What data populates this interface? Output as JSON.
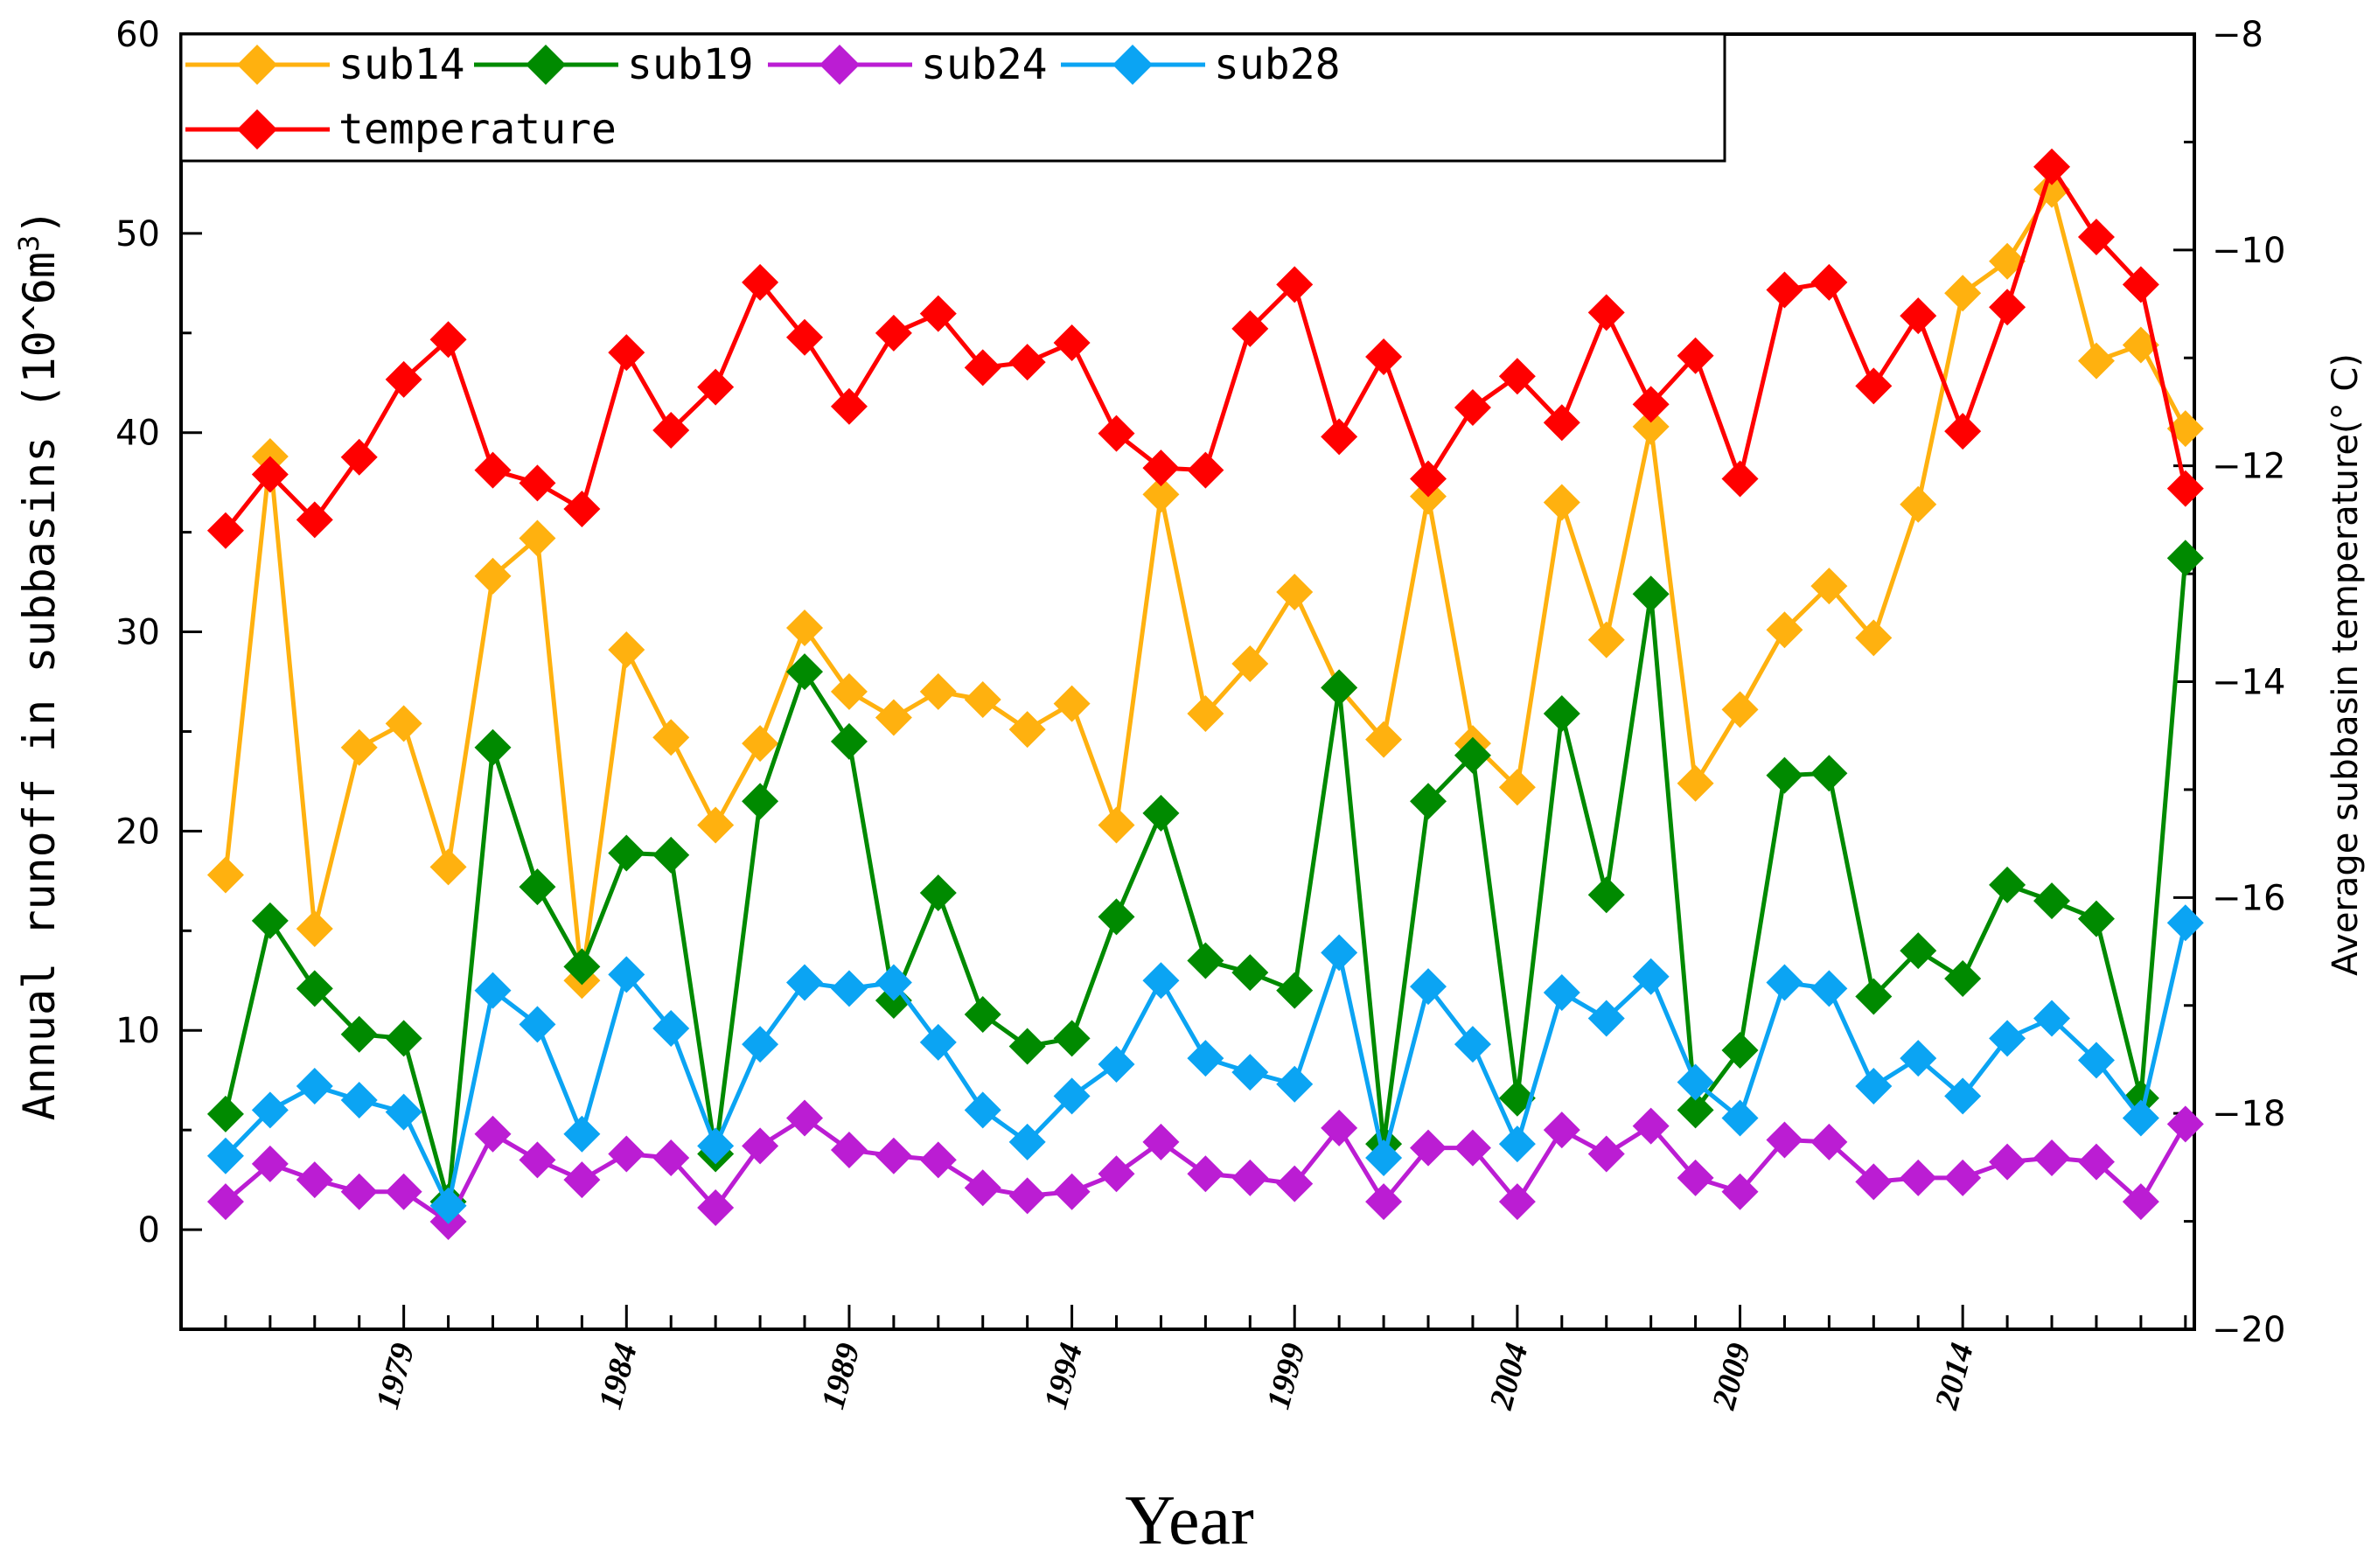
{
  "chart_data": {
    "type": "line",
    "title": "",
    "xlabel": "Year",
    "ylabel": "Annual runoff in subbasins (10^6m³)",
    "ylabel_parts": {
      "main": "Annual runoff in subbasins (10",
      "exp": "^6m",
      "sup": "3",
      "close": ")"
    },
    "y2label": "Average subbasin temperature(° C)",
    "xlim": [
      1974,
      2019.2
    ],
    "ylim": [
      -5,
      60
    ],
    "y2lim": [
      -20,
      -8
    ],
    "x_ticks": [
      1979,
      1984,
      1989,
      1994,
      1999,
      2004,
      2009,
      2014
    ],
    "x_tick_labels": [
      "1979",
      "1984",
      "1989",
      "1994",
      "1999",
      "2004",
      "2009",
      "2014"
    ],
    "y_ticks": [
      0,
      10,
      20,
      30,
      40,
      50,
      60
    ],
    "y_tick_labels": [
      "0",
      "10",
      "20",
      "30",
      "40",
      "50",
      "60"
    ],
    "y2_ticks": [
      -20,
      -18,
      -16,
      -14,
      -12,
      -10,
      -8
    ],
    "y2_tick_labels": [
      "−20",
      "−18",
      "−16",
      "−14",
      "−12",
      "−10",
      "−8"
    ],
    "legend_position": "top-left",
    "x": [
      1975,
      1976,
      1977,
      1978,
      1979,
      1980,
      1981,
      1982,
      1983,
      1984,
      1985,
      1986,
      1987,
      1988,
      1989,
      1990,
      1991,
      1992,
      1993,
      1994,
      1995,
      1996,
      1997,
      1998,
      1999,
      2000,
      2001,
      2002,
      2003,
      2004,
      2005,
      2006,
      2007,
      2008,
      2009,
      2010,
      2011,
      2012,
      2013,
      2014,
      2015,
      2016,
      2017,
      2018,
      2019
    ],
    "series": [
      {
        "name": "sub14",
        "axis": "left",
        "color": "#FFB10F",
        "values": [
          17.8,
          38.8,
          15.1,
          24.2,
          25.4,
          18.2,
          32.8,
          34.7,
          12.5,
          29.1,
          24.7,
          20.3,
          24.4,
          30.2,
          27.0,
          25.7,
          27.0,
          26.6,
          25.1,
          26.4,
          20.3,
          36.9,
          25.9,
          28.4,
          32.0,
          27.2,
          24.6,
          36.8,
          24.4,
          22.2,
          36.5,
          29.6,
          40.3,
          22.4,
          26.1,
          30.1,
          32.3,
          29.7,
          36.4,
          47.0,
          48.6,
          52.2,
          43.6,
          44.4,
          40.2
        ]
      },
      {
        "name": "sub19",
        "axis": "left",
        "color": "#008A00",
        "values": [
          5.8,
          15.5,
          12.1,
          9.8,
          9.6,
          1.4,
          24.2,
          17.2,
          13.2,
          18.9,
          18.8,
          3.8,
          21.5,
          28.0,
          24.5,
          11.5,
          16.9,
          10.8,
          9.2,
          9.6,
          15.7,
          20.9,
          13.5,
          12.9,
          12.0,
          27.2,
          4.3,
          21.5,
          23.8,
          6.6,
          25.9,
          16.8,
          31.9,
          6.0,
          9.0,
          22.8,
          22.9,
          11.7,
          14.0,
          12.6,
          17.3,
          16.5,
          15.6,
          6.6,
          33.7
        ]
      },
      {
        "name": "sub24",
        "axis": "left",
        "color": "#BB1DD3",
        "values": [
          1.4,
          3.3,
          2.5,
          1.9,
          1.9,
          0.4,
          4.8,
          3.5,
          2.5,
          3.8,
          3.6,
          1.1,
          4.2,
          5.6,
          4.0,
          3.7,
          3.5,
          2.1,
          1.7,
          1.9,
          2.8,
          4.4,
          2.8,
          2.6,
          2.3,
          5.1,
          1.4,
          4.1,
          4.1,
          1.4,
          5.0,
          3.8,
          5.2,
          2.6,
          1.9,
          4.5,
          4.4,
          2.4,
          2.6,
          2.6,
          3.4,
          3.6,
          3.4,
          1.4,
          5.3
        ]
      },
      {
        "name": "sub28",
        "axis": "left",
        "color": "#0BA4F3",
        "values": [
          3.7,
          6.0,
          7.2,
          6.5,
          5.9,
          1.2,
          12.0,
          10.3,
          4.8,
          12.8,
          10.1,
          4.2,
          9.3,
          12.4,
          12.1,
          12.4,
          9.4,
          6.0,
          4.4,
          6.7,
          8.3,
          12.5,
          8.6,
          7.9,
          7.3,
          13.9,
          3.6,
          12.2,
          9.3,
          4.3,
          11.9,
          10.6,
          12.7,
          7.4,
          5.6,
          12.4,
          12.1,
          7.2,
          8.6,
          6.7,
          9.6,
          10.6,
          8.5,
          5.6,
          15.4
        ]
      },
      {
        "name": "temperature",
        "axis": "right",
        "color": "#FF0000",
        "values": [
          -12.6,
          -12.08,
          -12.5,
          -11.92,
          -11.2,
          -10.83,
          -12.04,
          -12.16,
          -12.4,
          -10.95,
          -11.67,
          -11.27,
          -10.3,
          -10.81,
          -11.45,
          -10.77,
          -10.59,
          -11.09,
          -11.04,
          -10.86,
          -11.7,
          -12.02,
          -12.04,
          -10.73,
          -10.32,
          -11.73,
          -10.99,
          -12.12,
          -11.46,
          -11.17,
          -11.6,
          -10.58,
          -11.43,
          -10.98,
          -12.12,
          -10.37,
          -10.3,
          -11.26,
          -10.61,
          -11.68,
          -10.53,
          -9.23,
          -9.88,
          -10.32,
          -12.21
        ]
      }
    ]
  }
}
